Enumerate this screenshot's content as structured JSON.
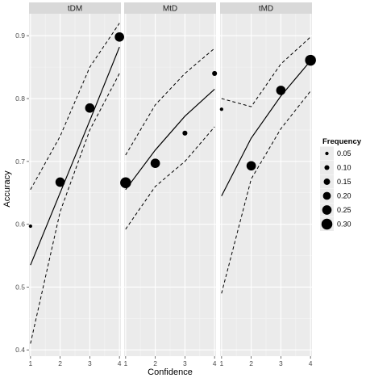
{
  "chart_data": {
    "type": "scatter",
    "xlabel": "Confidence",
    "ylabel": "Accuracy",
    "x_ticks": [
      "1",
      "2",
      "3",
      "4"
    ],
    "y_ticks": [
      "0.4",
      "0.5",
      "0.6",
      "0.7",
      "0.8",
      "0.9"
    ],
    "ylim": [
      0.39,
      0.935
    ],
    "xlim": [
      0.95,
      4.05
    ],
    "grid": true,
    "legend": {
      "title": "Frequency",
      "position": "right",
      "entries": [
        {
          "label": "0.05",
          "size": 0.05
        },
        {
          "label": "0.10",
          "size": 0.1
        },
        {
          "label": "0.15",
          "size": 0.15
        },
        {
          "label": "0.20",
          "size": 0.2
        },
        {
          "label": "0.25",
          "size": 0.25
        },
        {
          "label": "0.30",
          "size": 0.3
        }
      ]
    },
    "panels": [
      {
        "strip": "tDM",
        "points": [
          {
            "x": 1,
            "y": 0.597,
            "freq": 0.05
          },
          {
            "x": 2,
            "y": 0.667,
            "freq": 0.25
          },
          {
            "x": 3,
            "y": 0.785,
            "freq": 0.25
          },
          {
            "x": 4,
            "y": 0.898,
            "freq": 0.25
          }
        ],
        "fit": [
          0.535,
          0.65,
          0.765,
          0.882
        ],
        "upper": [
          0.655,
          0.74,
          0.85,
          0.92
        ],
        "lower": [
          0.41,
          0.62,
          0.75,
          0.84
        ]
      },
      {
        "strip": "MtD",
        "points": [
          {
            "x": 1,
            "y": 0.666,
            "freq": 0.3
          },
          {
            "x": 2,
            "y": 0.697,
            "freq": 0.25
          },
          {
            "x": 3,
            "y": 0.745,
            "freq": 0.1
          },
          {
            "x": 4,
            "y": 0.84,
            "freq": 0.1
          }
        ],
        "fit": [
          0.655,
          0.718,
          0.772,
          0.815
        ],
        "upper": [
          0.71,
          0.79,
          0.84,
          0.88
        ],
        "lower": [
          0.592,
          0.66,
          0.7,
          0.755
        ]
      },
      {
        "strip": "tMD",
        "points": [
          {
            "x": 1,
            "y": 0.783,
            "freq": 0.05
          },
          {
            "x": 2,
            "y": 0.693,
            "freq": 0.25
          },
          {
            "x": 3,
            "y": 0.813,
            "freq": 0.25
          },
          {
            "x": 4,
            "y": 0.861,
            "freq": 0.3
          }
        ],
        "fit": [
          0.645,
          0.737,
          0.804,
          0.86
        ],
        "upper": [
          0.8,
          0.787,
          0.855,
          0.898
        ],
        "lower": [
          0.49,
          0.672,
          0.752,
          0.812
        ]
      }
    ]
  },
  "colors": {
    "panel_bg": "#ebebeb",
    "strip_bg": "#d9d9d9",
    "major_grid": "#ffffff",
    "minor_grid": "#f5f5f5",
    "point": "#000000",
    "line": "#000000"
  }
}
